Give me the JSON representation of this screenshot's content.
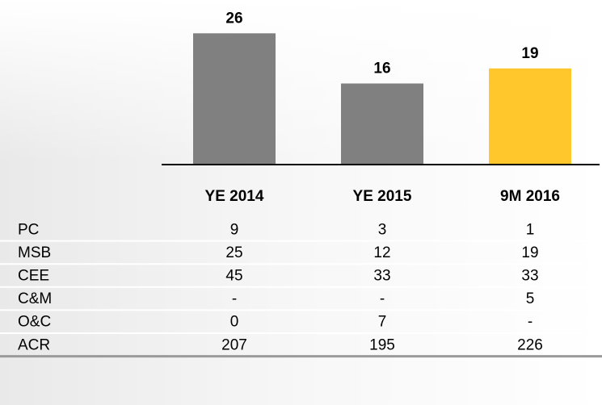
{
  "chart_data": {
    "type": "bar",
    "categories": [
      "YE 2014",
      "YE 2015",
      "9M 2016"
    ],
    "values": [
      26,
      16,
      19
    ],
    "colors": [
      "#808080",
      "#808080",
      "#ffc72c"
    ]
  },
  "table": {
    "rows": [
      [
        "PC",
        9,
        3,
        1
      ],
      [
        "MSB",
        25,
        12,
        19
      ],
      [
        "CEE",
        45,
        33,
        33
      ],
      [
        "C&M",
        "-",
        "-",
        5
      ],
      [
        "O&C",
        0,
        7,
        "-"
      ],
      [
        "ACR",
        207,
        195,
        226
      ]
    ]
  }
}
